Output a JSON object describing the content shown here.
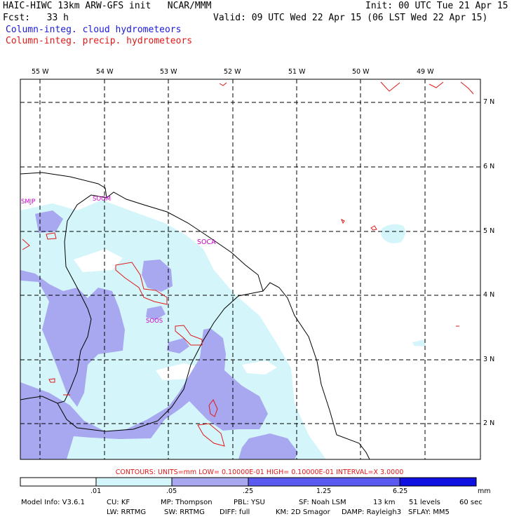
{
  "header": {
    "model_line": "HAIC-HIWC 13km ARW-GFS init   NCAR/MMM",
    "init_line": "Init: 00 UTC Tue 21 Apr 15",
    "fcst_line": "Fcst:   33 h",
    "valid_line": "Valid: 09 UTC Wed 22 Apr 15 (06 LST Wed 22 Apr 15)",
    "field_cloud": "Column-integ. cloud hydrometeors",
    "field_precip": "Column-integ. precip. hydrometeors"
  },
  "map": {
    "lon_labels": [
      "55 W",
      "54 W",
      "53 W",
      "52 W",
      "51 W",
      "50 W",
      "49 W"
    ],
    "lat_labels": [
      "7 N",
      "6 N",
      "5 N",
      "4 N",
      "3 N",
      "2 N"
    ],
    "places": [
      "SMJP",
      "SOOM",
      "SOCA",
      "SOOS"
    ]
  },
  "colors": {
    "cloud_light": "#d4f6fb",
    "cloud_medium": "#a8a8f0",
    "cloud_dark": "#5a5af0",
    "cloud_darkest": "#1010e0",
    "precip_contour": "#e01818",
    "coastline": "#000000"
  },
  "contours_line": "CONTOURS:  UNITS=mm  LOW= 0.10000E-01  HIGH= 0.10000E-01  INTERVAL=X  3.0000",
  "legend": {
    "levels": [
      ".01",
      ".05",
      ".25",
      "1.25",
      "6.25"
    ],
    "unit": "mm"
  },
  "model_info": {
    "line1": [
      "Model Info: V3.6.1",
      "CU: KF",
      "MP: Thompson",
      "PBL: YSU",
      "SF: Noah LSM",
      "13 km",
      "51 levels",
      "60 sec"
    ],
    "line2": [
      "LW: RRTMG",
      "SW: RRTMG",
      "DIFF: full",
      "KM: 2D Smagor",
      "DAMP: Rayleigh3",
      "SFLAY: MM5"
    ]
  }
}
